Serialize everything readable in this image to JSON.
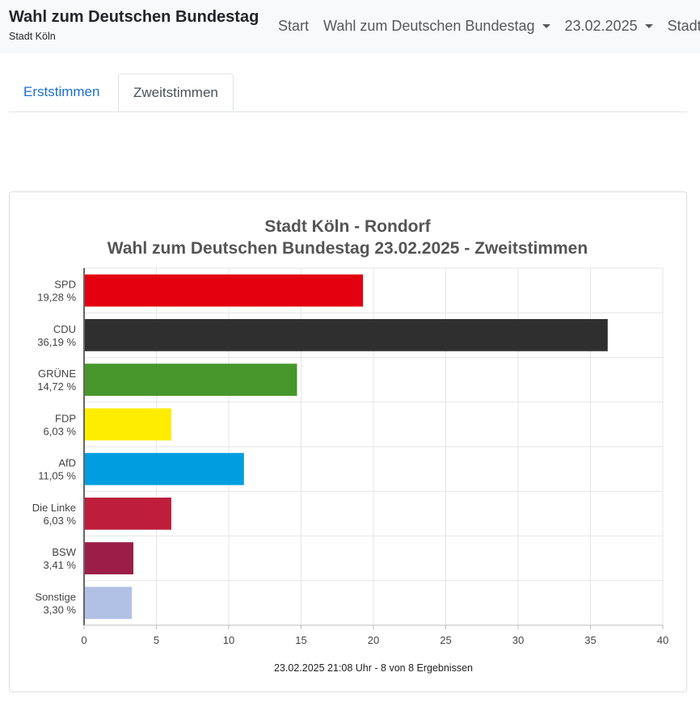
{
  "header": {
    "title": "Wahl zum Deutschen Bundestag",
    "subtitle": "Stadt Köln",
    "nav": {
      "start": "Start",
      "election": "Wahl zum Deutschen Bundestag",
      "date": "23.02.2025",
      "area": "Stadt Köln"
    }
  },
  "tabs": {
    "first": "Erststimmen",
    "second": "Zweitstimmen"
  },
  "chart_data": {
    "type": "bar",
    "orientation": "horizontal",
    "title": "Stadt Köln - Rondorf",
    "subtitle": "Wahl zum Deutschen Bundestag 23.02.2025  - Zweitstimmen",
    "categories": [
      "SPD",
      "CDU",
      "GRÜNE",
      "FDP",
      "AfD",
      "Die Linke",
      "BSW",
      "Sonstige"
    ],
    "value_labels": [
      "19,28 %",
      "36,19 %",
      "14,72 %",
      "6,03 %",
      "11,05 %",
      "6,03 %",
      "3,41 %",
      "3,30 %"
    ],
    "values": [
      19.28,
      36.19,
      14.72,
      6.03,
      11.05,
      6.03,
      3.41,
      3.3
    ],
    "colors": [
      "#e3000f",
      "#2f2f2f",
      "#46962b",
      "#ffed00",
      "#009ee0",
      "#be1e3c",
      "#9c1e48",
      "#b1c0e5"
    ],
    "xlim": [
      0,
      40
    ],
    "xticks": [
      0,
      5,
      10,
      15,
      20,
      25,
      30,
      35,
      40
    ],
    "grid": true,
    "legend": "none",
    "footer": "23.02.2025 21:08 Uhr - 8 von 8 Ergebnissen"
  }
}
